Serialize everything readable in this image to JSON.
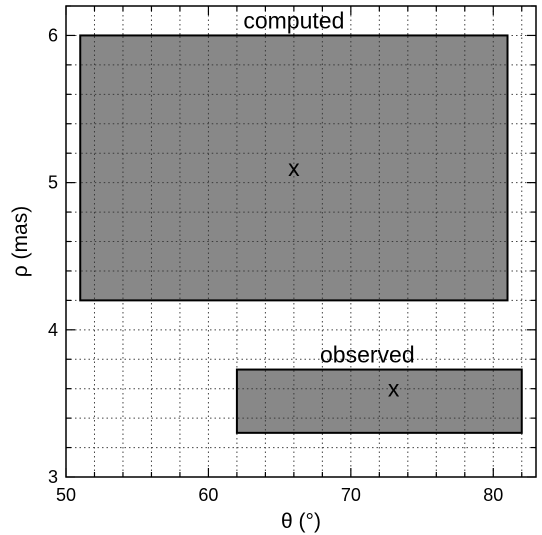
{
  "chart_data": {
    "type": "rectangle-region",
    "xlabel": "θ (°)",
    "ylabel": "ρ (mas)",
    "xlim": [
      50,
      83
    ],
    "ylim": [
      3,
      6.2
    ],
    "xticks": [
      50,
      60,
      70,
      80
    ],
    "yticks": [
      3,
      4,
      5,
      6
    ],
    "x_minor_step": 2,
    "y_minor_step": 0.2,
    "grid": true,
    "grid_style": "dotted",
    "regions": [
      {
        "label": "computed",
        "x_range": [
          51,
          81
        ],
        "y_range": [
          4.2,
          6.0
        ],
        "center": {
          "x": 66,
          "y": 5.1
        },
        "center_marker": "x",
        "fill": "#888888",
        "edge": "#000000"
      },
      {
        "label": "observed",
        "x_range": [
          62,
          82
        ],
        "y_range": [
          3.3,
          3.73
        ],
        "center": {
          "x": 73,
          "y": 3.6
        },
        "center_marker": "x",
        "fill": "#888888",
        "edge": "#000000"
      }
    ]
  }
}
